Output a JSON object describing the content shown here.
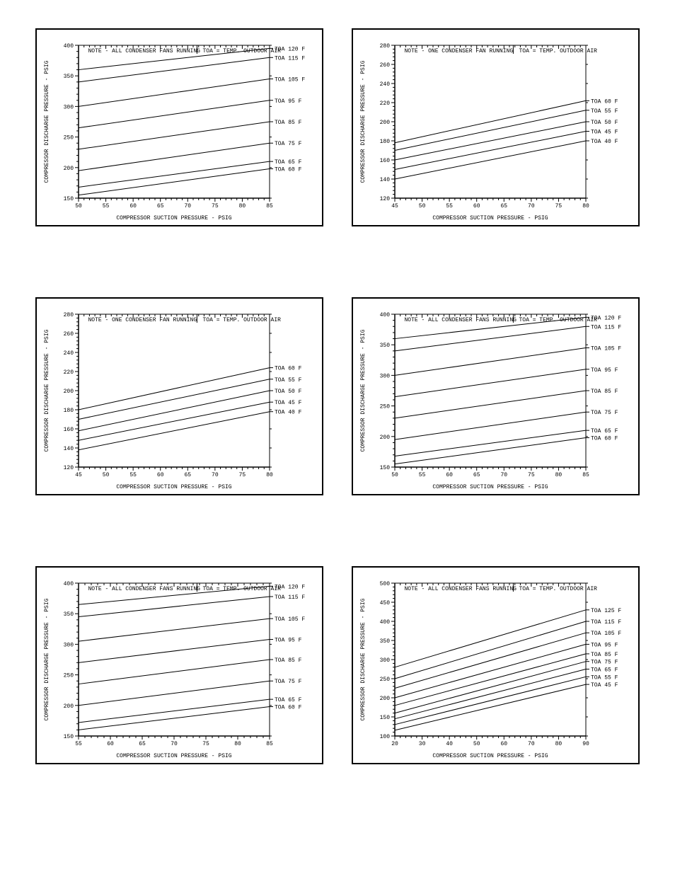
{
  "global": {
    "line_color": "#000000",
    "background_color": "#ffffff",
    "grid_on": false,
    "border_width": 2,
    "font_family": "Courier New",
    "tick_fontsize": 8,
    "label_fontsize": 8,
    "note_fontsize": 8,
    "axis_line_width": 1,
    "series_line_width": 1,
    "minor_tick_count": 5
  },
  "charts": [
    {
      "id": "chart-1",
      "type": "line",
      "note": "NOTE - ALL CONDENSER FANS RUNNING",
      "toa_note": "TOA = TEMP. OUTDOOR AIR",
      "xlabel": "COMPRESSOR SUCTION PRESSURE - PSIG",
      "ylabel": "COMPRESSOR DISCHARGE PRESSURE - PSIG",
      "xlim": [
        50,
        85
      ],
      "xtick_step": 5,
      "ylim": [
        150,
        400
      ],
      "ytick_step": 50,
      "series": [
        {
          "label": "TOA 120 F",
          "p0": [
            50,
            360
          ],
          "p1": [
            85,
            395
          ]
        },
        {
          "label": "TOA 115 F",
          "p0": [
            50,
            340
          ],
          "p1": [
            85,
            380
          ]
        },
        {
          "label": "TOA 105 F",
          "p0": [
            50,
            300
          ],
          "p1": [
            85,
            345
          ]
        },
        {
          "label": "TOA 95 F",
          "p0": [
            50,
            265
          ],
          "p1": [
            85,
            310
          ]
        },
        {
          "label": "TOA 85 F",
          "p0": [
            50,
            230
          ],
          "p1": [
            85,
            275
          ]
        },
        {
          "label": "TOA 75 F",
          "p0": [
            50,
            195
          ],
          "p1": [
            85,
            240
          ]
        },
        {
          "label": "TOA 65 F",
          "p0": [
            50,
            168
          ],
          "p1": [
            85,
            210
          ]
        },
        {
          "label": "TOA 60 F",
          "p0": [
            50,
            155
          ],
          "p1": [
            85,
            198
          ]
        }
      ]
    },
    {
      "id": "chart-2",
      "type": "line",
      "note": "NOTE - ONE CONDENSER FAN RUNNING",
      "toa_note": "TOA = TEMP. OUTDOOR AIR",
      "xlabel": "COMPRESSOR SUCTION PRESSURE - PSIG",
      "ylabel": "COMPRESSOR DISCHARGE PRESSURE - PSIG",
      "xlim": [
        45,
        80
      ],
      "xtick_step": 5,
      "ylim": [
        120,
        280
      ],
      "ytick_step": 20,
      "series": [
        {
          "label": "TOA 60 F",
          "p0": [
            45,
            178
          ],
          "p1": [
            80,
            222
          ]
        },
        {
          "label": "TOA 55 F",
          "p0": [
            45,
            170
          ],
          "p1": [
            80,
            212
          ]
        },
        {
          "label": "TOA 50 F",
          "p0": [
            45,
            160
          ],
          "p1": [
            80,
            200
          ]
        },
        {
          "label": "TOA 45 F",
          "p0": [
            45,
            150
          ],
          "p1": [
            80,
            190
          ]
        },
        {
          "label": "TOA 40 F",
          "p0": [
            45,
            140
          ],
          "p1": [
            80,
            180
          ]
        }
      ]
    },
    {
      "id": "chart-3",
      "type": "line",
      "note": "NOTE - ONE CONDENSER FAN RUNNING",
      "toa_note": "TOA = TEMP. OUTDOOR AIR",
      "xlabel": "COMPRESSOR SUCTION PRESSURE - PSIG",
      "ylabel": "COMPRESSOR DISCHARGE PRESSURE - PSIG",
      "xlim": [
        45,
        80
      ],
      "xtick_step": 5,
      "ylim": [
        120,
        280
      ],
      "ytick_step": 20,
      "series": [
        {
          "label": "TOA 60 F",
          "p0": [
            45,
            180
          ],
          "p1": [
            80,
            224
          ]
        },
        {
          "label": "TOA 55 F",
          "p0": [
            45,
            170
          ],
          "p1": [
            80,
            212
          ]
        },
        {
          "label": "TOA 50 F",
          "p0": [
            45,
            158
          ],
          "p1": [
            80,
            200
          ]
        },
        {
          "label": "TOA 45 F",
          "p0": [
            45,
            148
          ],
          "p1": [
            80,
            188
          ]
        },
        {
          "label": "TOA 40 F",
          "p0": [
            45,
            138
          ],
          "p1": [
            80,
            178
          ]
        }
      ]
    },
    {
      "id": "chart-4",
      "type": "line",
      "note": "NOTE - ALL CONDENSER FANS RUNNING",
      "toa_note": "TOA = TEMP. OUTDOOR AIR",
      "xlabel": "COMPRESSOR SUCTION PRESSURE - PSIG",
      "ylabel": "COMPRESSOR DISCHARGE PRESSURE - PSIG",
      "xlim": [
        50,
        85
      ],
      "xtick_step": 5,
      "ylim": [
        150,
        400
      ],
      "ytick_step": 50,
      "series": [
        {
          "label": "TOA 120 F",
          "p0": [
            50,
            360
          ],
          "p1": [
            85,
            395
          ]
        },
        {
          "label": "TOA 115 F",
          "p0": [
            50,
            340
          ],
          "p1": [
            85,
            380
          ]
        },
        {
          "label": "TOA 105 F",
          "p0": [
            50,
            300
          ],
          "p1": [
            85,
            345
          ]
        },
        {
          "label": "TOA 95 F",
          "p0": [
            50,
            265
          ],
          "p1": [
            85,
            310
          ]
        },
        {
          "label": "TOA 85 F",
          "p0": [
            50,
            230
          ],
          "p1": [
            85,
            275
          ]
        },
        {
          "label": "TOA 75 F",
          "p0": [
            50,
            195
          ],
          "p1": [
            85,
            240
          ]
        },
        {
          "label": "TOA 65 F",
          "p0": [
            50,
            168
          ],
          "p1": [
            85,
            210
          ]
        },
        {
          "label": "TOA 60 F",
          "p0": [
            50,
            155
          ],
          "p1": [
            85,
            198
          ]
        }
      ]
    },
    {
      "id": "chart-5",
      "type": "line",
      "note": "NOTE - ALL CONDENSER FANS RUNNING",
      "toa_note": "TOA = TEMP. OUTDOOR AIR",
      "xlabel": "COMPRESSOR SUCTION PRESSURE - PSIG",
      "ylabel": "COMPRESSOR DISCHARGE PRESSURE - PSIG",
      "xlim": [
        55,
        85
      ],
      "xtick_step": 5,
      "ylim": [
        150,
        400
      ],
      "ytick_step": 50,
      "series": [
        {
          "label": "TOA 120 F",
          "p0": [
            55,
            365
          ],
          "p1": [
            85,
            395
          ]
        },
        {
          "label": "TOA 115 F",
          "p0": [
            55,
            345
          ],
          "p1": [
            85,
            378
          ]
        },
        {
          "label": "TOA 105 F",
          "p0": [
            55,
            305
          ],
          "p1": [
            85,
            342
          ]
        },
        {
          "label": "TOA 95 F",
          "p0": [
            55,
            270
          ],
          "p1": [
            85,
            308
          ]
        },
        {
          "label": "TOA 85 F",
          "p0": [
            55,
            235
          ],
          "p1": [
            85,
            275
          ]
        },
        {
          "label": "TOA 75 F",
          "p0": [
            55,
            200
          ],
          "p1": [
            85,
            240
          ]
        },
        {
          "label": "TOA 65 F",
          "p0": [
            55,
            172
          ],
          "p1": [
            85,
            210
          ]
        },
        {
          "label": "TOA 60 F",
          "p0": [
            55,
            160
          ],
          "p1": [
            85,
            198
          ]
        }
      ]
    },
    {
      "id": "chart-6",
      "type": "line",
      "note": "NOTE - ALL CONDENSER FANS RUNNING",
      "toa_note": "TOA = TEMP. OUTDOOR AIR",
      "xlabel": "COMPRESSOR SUCTION PRESSURE - PSIG",
      "ylabel": "COMPRESSOR DISCHARGE PRESSURE - PSIG",
      "xlim": [
        20,
        90
      ],
      "xtick_step": 10,
      "ylim": [
        100,
        500
      ],
      "ytick_step": 50,
      "series": [
        {
          "label": "TOA 125 F",
          "p0": [
            20,
            280
          ],
          "p1": [
            90,
            430
          ]
        },
        {
          "label": "TOA 115 F",
          "p0": [
            20,
            250
          ],
          "p1": [
            90,
            400
          ]
        },
        {
          "label": "TOA 105 F",
          "p0": [
            20,
            225
          ],
          "p1": [
            90,
            370
          ]
        },
        {
          "label": "TOA 95 F",
          "p0": [
            20,
            200
          ],
          "p1": [
            90,
            340
          ]
        },
        {
          "label": "TOA 85 F",
          "p0": [
            20,
            180
          ],
          "p1": [
            90,
            315
          ]
        },
        {
          "label": "TOA 75 F",
          "p0": [
            20,
            160
          ],
          "p1": [
            90,
            295
          ]
        },
        {
          "label": "TOA 65 F",
          "p0": [
            20,
            145
          ],
          "p1": [
            90,
            275
          ]
        },
        {
          "label": "TOA 55 F",
          "p0": [
            20,
            130
          ],
          "p1": [
            90,
            255
          ]
        },
        {
          "label": "TOA 45 F",
          "p0": [
            20,
            115
          ],
          "p1": [
            90,
            235
          ]
        }
      ]
    }
  ]
}
